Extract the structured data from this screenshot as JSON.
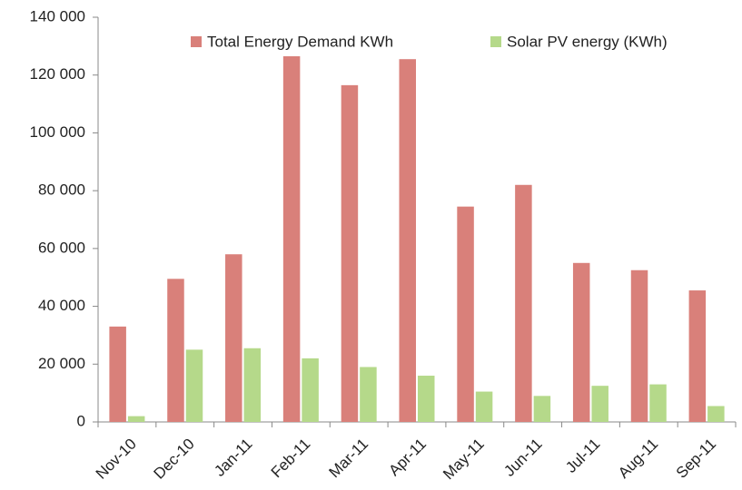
{
  "chart_data": {
    "type": "bar",
    "categories": [
      "Nov-10",
      "Dec-10",
      "Jan-11",
      "Feb-11",
      "Mar-11",
      "Apr-11",
      "May-11",
      "Jun-11",
      "Jul-11",
      "Aug-11",
      "Sep-11"
    ],
    "series": [
      {
        "name": "Total Energy Demand KWh",
        "color": "#d9807a",
        "values": [
          33000,
          49500,
          58000,
          126500,
          116500,
          125500,
          74500,
          82000,
          55000,
          52500,
          45500
        ]
      },
      {
        "name": "Solar PV energy (KWh)",
        "color": "#b5d98a",
        "values": [
          2000,
          25000,
          25500,
          22000,
          19000,
          16000,
          10500,
          9000,
          12500,
          13000,
          5500
        ]
      }
    ],
    "ylim": [
      0,
      140000
    ],
    "yticks": [
      0,
      {
        "value": 20000,
        "label": "20 000"
      },
      {
        "value": 40000,
        "label": "40 000"
      },
      {
        "value": 60000,
        "label": "60 000"
      },
      {
        "value": 80000,
        "label": "80 000"
      },
      {
        "value": 100000,
        "label": "100 000"
      },
      {
        "value": 120000,
        "label": "120 000"
      },
      {
        "value": 140000,
        "label": "140 000"
      }
    ],
    "grid": false,
    "legend": "top"
  }
}
